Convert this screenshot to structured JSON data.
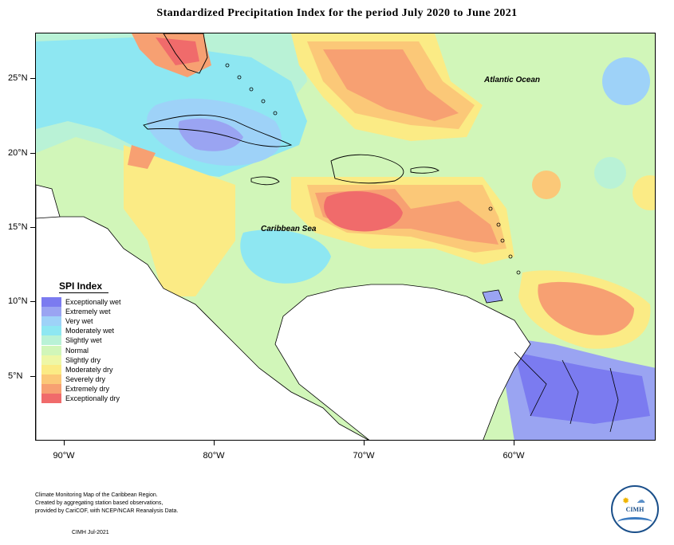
{
  "title": "Standardized Precipitation Index for the period July 2020 to June 2021",
  "map": {
    "lat_labels": [
      "25°N",
      "20°N",
      "15°N",
      "10°N",
      "5°N"
    ],
    "lon_labels": [
      "90°W",
      "80°W",
      "70°W",
      "60°W"
    ],
    "sea_labels": [
      "Caribbean Sea",
      "Atlantic Ocean"
    ]
  },
  "legend": {
    "title": "SPI Index",
    "items": [
      {
        "label": "Exceptionally wet",
        "color": "#7b7bf0"
      },
      {
        "label": "Extremely wet",
        "color": "#9aa4f2"
      },
      {
        "label": "Very wet",
        "color": "#9ed2f8"
      },
      {
        "label": "Moderately wet",
        "color": "#8ee7f2"
      },
      {
        "label": "Slightly wet",
        "color": "#b9f2d6"
      },
      {
        "label": "Normal",
        "color": "#d1f6b9"
      },
      {
        "label": "Slightly dry",
        "color": "#eef7a6"
      },
      {
        "label": "Moderately dry",
        "color": "#fbeb85"
      },
      {
        "label": "Severely dry",
        "color": "#fbc878"
      },
      {
        "label": "Extremely dry",
        "color": "#f7a072"
      },
      {
        "label": "Exceptionally dry",
        "color": "#f06b6b"
      }
    ]
  },
  "footnote": {
    "lines": [
      "Climate Monitoring Map of the Caribbean Region.",
      "Created by aggregating station based observations,",
      "provided by CariCOF, with NCEP/NCAR Reanalysis Data."
    ],
    "credit": "CIMH Jul-2021"
  },
  "logo": {
    "text": "CIMH"
  }
}
